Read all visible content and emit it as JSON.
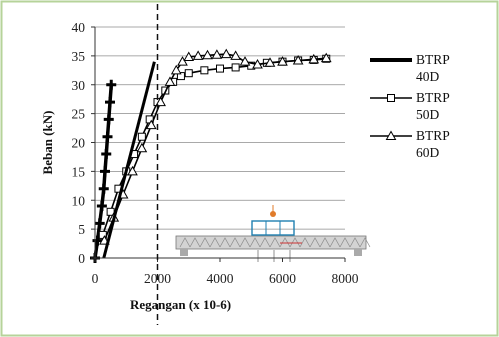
{
  "chart_data": {
    "type": "scatter",
    "title": "",
    "xlabel": "Regangan (x 10-6)",
    "ylabel": "Beban (kN)",
    "xlim": [
      0,
      8000
    ],
    "ylim": [
      0,
      40
    ],
    "x_ticks": [
      "0",
      "2000",
      "4000",
      "6000",
      "8000"
    ],
    "y_ticks": [
      "0",
      "5",
      "10",
      "15",
      "20",
      "25",
      "30",
      "35",
      "40"
    ],
    "grid": "horizontal",
    "legend_position": "right",
    "reference_line": {
      "axis": "x",
      "value": 2000,
      "style": "dashed"
    },
    "series": [
      {
        "name": "BTRP 40D",
        "marker": "plus",
        "x": [
          0,
          80,
          150,
          220,
          280,
          320,
          360,
          400,
          440,
          480,
          520
        ],
        "y": [
          0,
          3,
          6,
          9,
          12,
          15,
          18,
          21,
          24,
          27,
          30
        ]
      },
      {
        "name": "BTRP 50D",
        "marker": "square",
        "x": [
          250,
          500,
          750,
          1000,
          1250,
          1500,
          1750,
          2000,
          2250,
          2500,
          2750,
          3000,
          3500,
          4000,
          4500,
          5000,
          5500,
          6000,
          6500,
          7000,
          7400
        ],
        "y": [
          4,
          8,
          12,
          15,
          18,
          21,
          24,
          27,
          29,
          30.5,
          31.5,
          32,
          32.5,
          32.8,
          33,
          33.3,
          33.8,
          34,
          34.2,
          34.3,
          34.5
        ]
      },
      {
        "name": "BTRP 60D",
        "marker": "triangle",
        "x": [
          300,
          600,
          900,
          1200,
          1500,
          1800,
          2100,
          2400,
          2600,
          2800,
          3000,
          3300,
          3600,
          3900,
          4200,
          4500,
          4800,
          5200,
          5600,
          6000,
          6500,
          7000,
          7400
        ],
        "y": [
          3,
          7,
          11,
          15,
          19,
          23,
          27,
          30.5,
          32.5,
          34,
          34.8,
          35,
          35.1,
          35.2,
          35.3,
          35,
          34,
          33.5,
          33.8,
          34,
          34.2,
          34.4,
          34.6
        ]
      },
      {
        "name": "",
        "marker": "none",
        "x": [
          280,
          1900
        ],
        "y": [
          0,
          34
        ]
      }
    ]
  }
}
